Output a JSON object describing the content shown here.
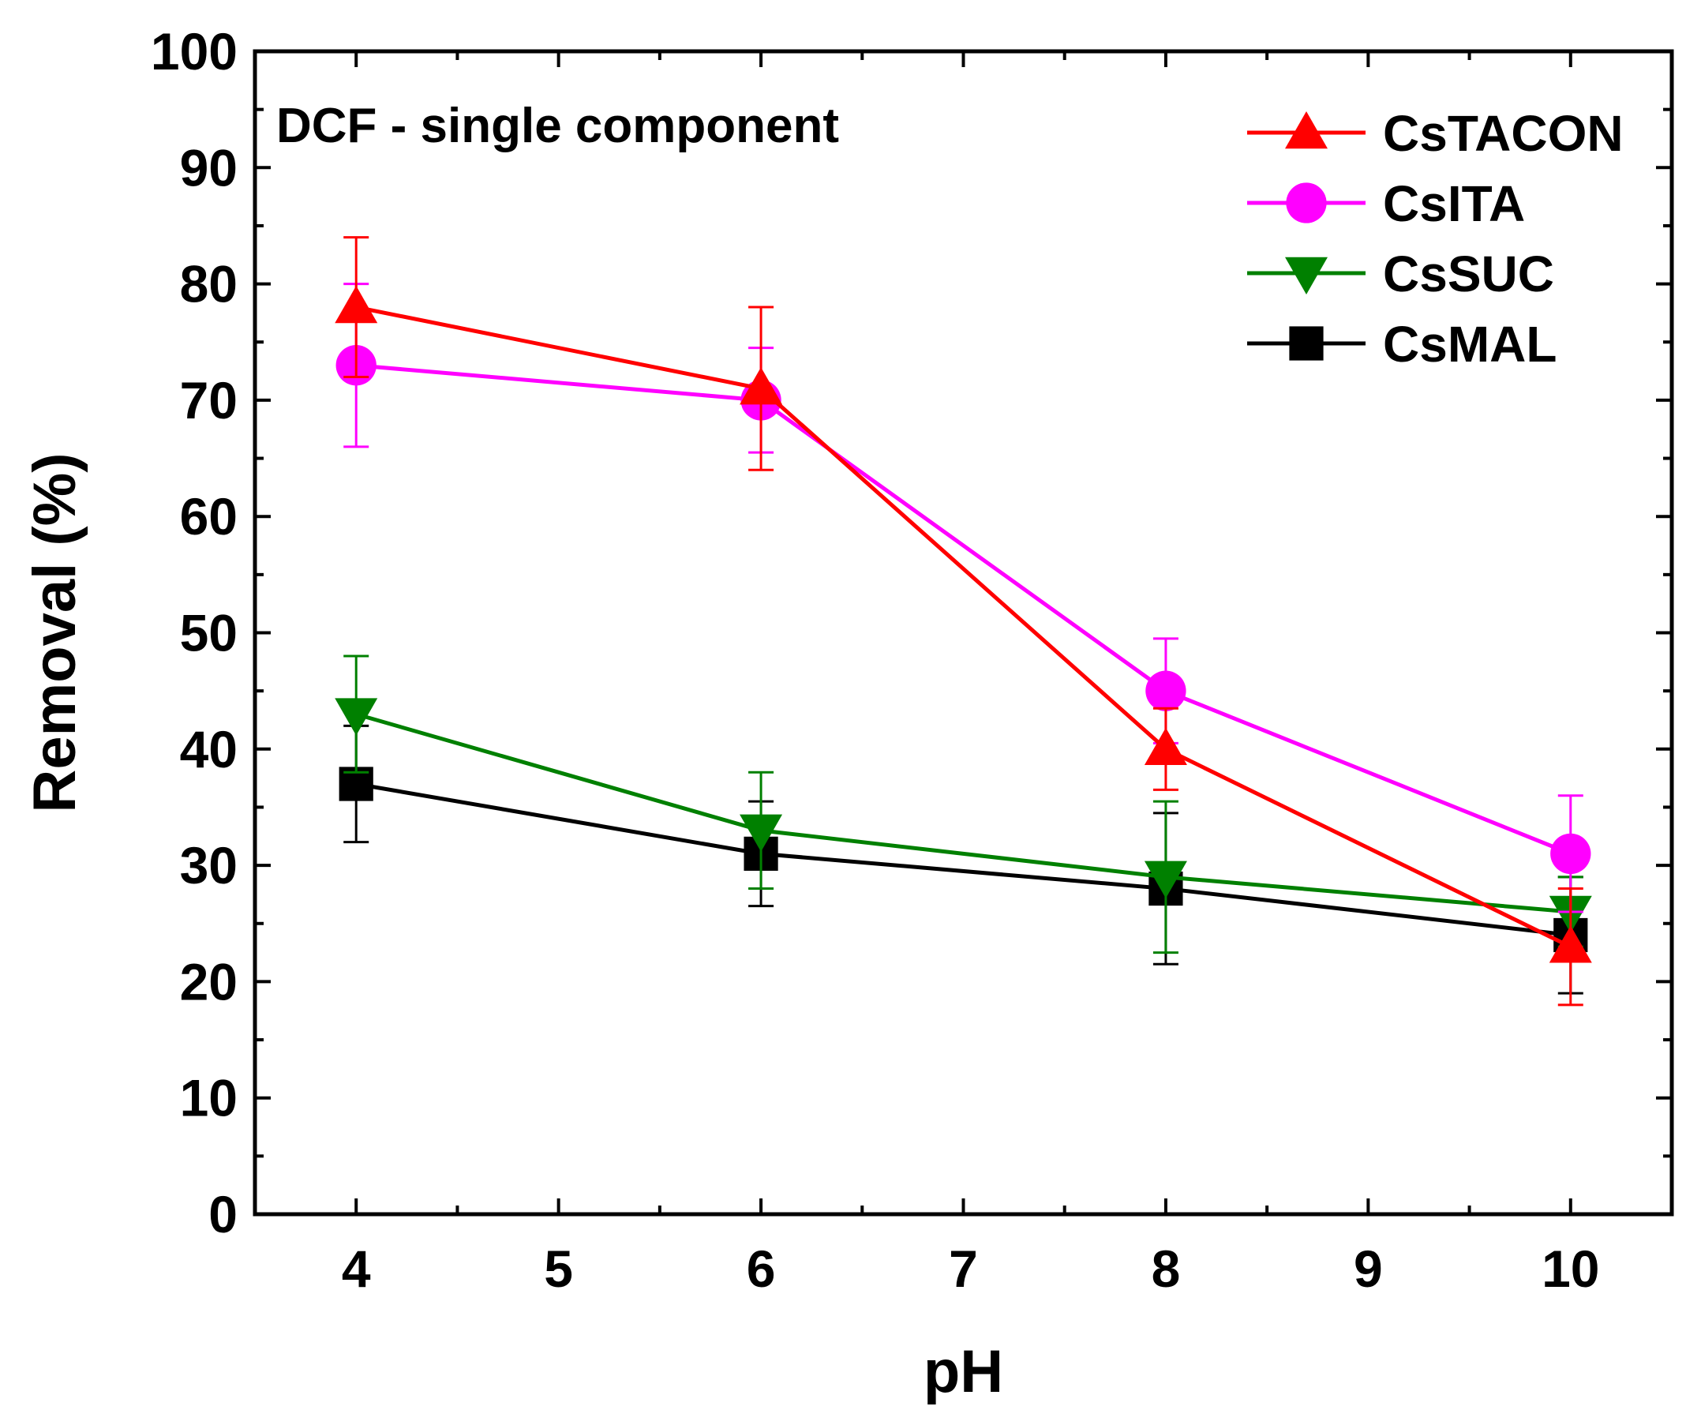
{
  "chart_data": {
    "type": "line",
    "title": "",
    "annotation": "DCF - single component",
    "xlabel": "pH",
    "ylabel": "Removal (%)",
    "xlim": [
      3.5,
      10.5
    ],
    "ylim": [
      0,
      100
    ],
    "xticks": [
      4,
      5,
      6,
      7,
      8,
      9,
      10
    ],
    "yticks": [
      0,
      10,
      20,
      30,
      40,
      50,
      60,
      70,
      80,
      90,
      100
    ],
    "grid": false,
    "legend_position": "top-right",
    "x": [
      4,
      6,
      8,
      10
    ],
    "series": [
      {
        "name": "CsTACON",
        "color": "#ff0000",
        "marker": "triangle-up",
        "values": [
          78,
          71,
          40,
          23
        ],
        "errors": [
          6,
          7,
          3.5,
          5
        ]
      },
      {
        "name": "CsITA",
        "color": "#ff00ff",
        "marker": "circle",
        "values": [
          73,
          70,
          45,
          31
        ],
        "errors": [
          7,
          4.5,
          4.5,
          5
        ]
      },
      {
        "name": "CsSUC",
        "color": "#008000",
        "marker": "triangle-down",
        "values": [
          43,
          33,
          29,
          26
        ],
        "errors": [
          5,
          5,
          6.5,
          3
        ]
      },
      {
        "name": "CsMAL",
        "color": "#000000",
        "marker": "square",
        "values": [
          37,
          31,
          28,
          24
        ],
        "errors": [
          5,
          4.5,
          6.5,
          5
        ]
      }
    ]
  }
}
